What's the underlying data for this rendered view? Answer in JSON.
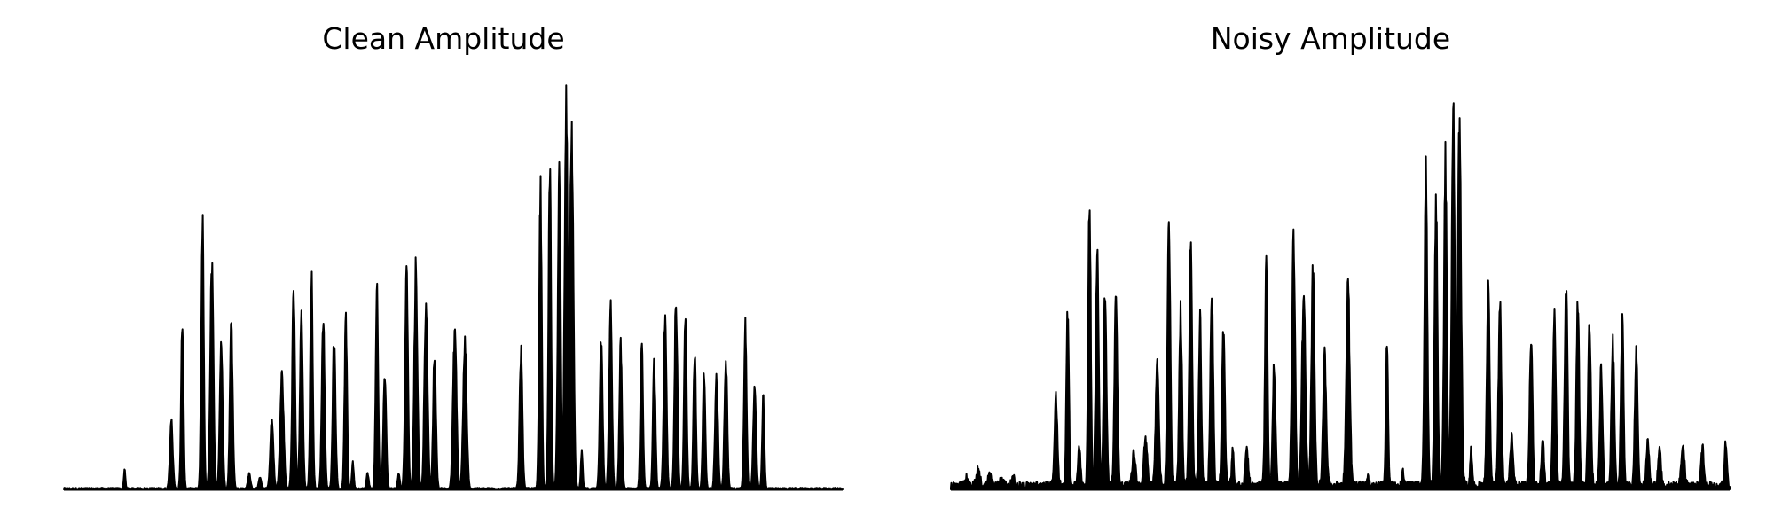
{
  "figure": {
    "background": "#ffffff",
    "line_color": "#000000"
  },
  "chart_data": [
    {
      "type": "area",
      "title": "Clean Amplitude",
      "axes_visible": false,
      "grid": false,
      "ylim": [
        0,
        1
      ],
      "xlim": [
        0,
        100
      ],
      "baseline": 0,
      "peaks": [
        [
          7.8,
          0.05,
          0.1
        ],
        [
          13.8,
          0.18,
          0.18
        ],
        [
          15.2,
          0.44,
          0.15
        ],
        [
          17.8,
          0.7,
          0.16
        ],
        [
          19.0,
          0.58,
          0.2
        ],
        [
          20.2,
          0.39,
          0.18
        ],
        [
          21.5,
          0.44,
          0.18
        ],
        [
          23.8,
          0.04,
          0.16
        ],
        [
          25.2,
          0.03,
          0.16
        ],
        [
          26.7,
          0.18,
          0.2
        ],
        [
          28.0,
          0.3,
          0.22
        ],
        [
          29.5,
          0.52,
          0.18
        ],
        [
          30.5,
          0.45,
          0.18
        ],
        [
          31.8,
          0.55,
          0.16
        ],
        [
          33.3,
          0.44,
          0.18
        ],
        [
          34.7,
          0.4,
          0.18
        ],
        [
          36.2,
          0.44,
          0.16
        ],
        [
          37.1,
          0.07,
          0.12
        ],
        [
          39.0,
          0.04,
          0.14
        ],
        [
          40.2,
          0.51,
          0.16
        ],
        [
          41.2,
          0.3,
          0.18
        ],
        [
          43.0,
          0.04,
          0.14
        ],
        [
          44.0,
          0.57,
          0.18
        ],
        [
          45.2,
          0.58,
          0.2
        ],
        [
          46.5,
          0.5,
          0.2
        ],
        [
          47.6,
          0.35,
          0.18
        ],
        [
          50.2,
          0.42,
          0.22
        ],
        [
          51.5,
          0.38,
          0.22
        ],
        [
          58.7,
          0.36,
          0.18
        ],
        [
          61.2,
          0.8,
          0.16
        ],
        [
          62.4,
          0.86,
          0.16
        ],
        [
          63.6,
          0.82,
          0.18
        ],
        [
          64.5,
          1.0,
          0.2
        ],
        [
          65.2,
          0.95,
          0.22
        ],
        [
          66.5,
          0.1,
          0.12
        ],
        [
          69.0,
          0.38,
          0.18
        ],
        [
          70.2,
          0.48,
          0.18
        ],
        [
          71.5,
          0.38,
          0.16
        ],
        [
          74.2,
          0.4,
          0.16
        ],
        [
          75.8,
          0.33,
          0.16
        ],
        [
          77.2,
          0.44,
          0.18
        ],
        [
          78.6,
          0.5,
          0.18
        ],
        [
          79.8,
          0.47,
          0.16
        ],
        [
          81.0,
          0.36,
          0.16
        ],
        [
          82.2,
          0.3,
          0.16
        ],
        [
          83.8,
          0.3,
          0.18
        ],
        [
          85.0,
          0.34,
          0.18
        ],
        [
          87.5,
          0.44,
          0.16
        ],
        [
          88.7,
          0.27,
          0.18
        ],
        [
          89.8,
          0.24,
          0.14
        ]
      ],
      "noise_floor": 0.004
    },
    {
      "type": "area",
      "title": "Noisy Amplitude",
      "axes_visible": false,
      "grid": false,
      "ylim": [
        0,
        1
      ],
      "xlim": [
        0,
        100
      ],
      "baseline": 0,
      "peaks": [
        [
          2.0,
          0.02,
          0.18
        ],
        [
          3.5,
          0.04,
          0.22
        ],
        [
          5.0,
          0.03,
          0.22
        ],
        [
          6.5,
          0.02,
          0.22
        ],
        [
          8.0,
          0.02,
          0.18
        ],
        [
          13.5,
          0.24,
          0.18
        ],
        [
          15.0,
          0.46,
          0.16
        ],
        [
          16.5,
          0.1,
          0.16
        ],
        [
          17.8,
          0.76,
          0.16
        ],
        [
          18.8,
          0.64,
          0.18
        ],
        [
          19.8,
          0.52,
          0.18
        ],
        [
          21.2,
          0.52,
          0.18
        ],
        [
          23.5,
          0.09,
          0.2
        ],
        [
          25.0,
          0.12,
          0.22
        ],
        [
          26.5,
          0.32,
          0.2
        ],
        [
          28.0,
          0.7,
          0.18
        ],
        [
          29.5,
          0.45,
          0.18
        ],
        [
          30.8,
          0.64,
          0.18
        ],
        [
          32.0,
          0.45,
          0.16
        ],
        [
          33.5,
          0.52,
          0.18
        ],
        [
          35.0,
          0.41,
          0.18
        ],
        [
          36.2,
          0.09,
          0.14
        ],
        [
          38.0,
          0.1,
          0.18
        ],
        [
          40.5,
          0.59,
          0.16
        ],
        [
          41.5,
          0.31,
          0.18
        ],
        [
          44.0,
          0.65,
          0.2
        ],
        [
          45.3,
          0.51,
          0.22
        ],
        [
          46.5,
          0.56,
          0.2
        ],
        [
          48.0,
          0.35,
          0.2
        ],
        [
          51.0,
          0.52,
          0.22
        ],
        [
          53.5,
          0.02,
          0.14
        ],
        [
          56.0,
          0.37,
          0.14
        ],
        [
          58.0,
          0.04,
          0.14
        ],
        [
          61.0,
          0.82,
          0.18
        ],
        [
          62.3,
          0.74,
          0.18
        ],
        [
          63.5,
          0.85,
          0.18
        ],
        [
          64.5,
          1.0,
          0.2
        ],
        [
          65.3,
          0.94,
          0.22
        ],
        [
          66.8,
          0.1,
          0.12
        ],
        [
          69.0,
          0.53,
          0.18
        ],
        [
          70.5,
          0.48,
          0.18
        ],
        [
          72.0,
          0.13,
          0.18
        ],
        [
          74.5,
          0.4,
          0.18
        ],
        [
          76.0,
          0.12,
          0.16
        ],
        [
          77.5,
          0.46,
          0.18
        ],
        [
          79.0,
          0.52,
          0.18
        ],
        [
          80.5,
          0.48,
          0.18
        ],
        [
          82.0,
          0.45,
          0.18
        ],
        [
          83.5,
          0.3,
          0.18
        ],
        [
          85.0,
          0.38,
          0.18
        ],
        [
          86.2,
          0.46,
          0.16
        ],
        [
          88.0,
          0.35,
          0.18
        ],
        [
          89.5,
          0.12,
          0.18
        ],
        [
          91.0,
          0.1,
          0.18
        ],
        [
          94.0,
          0.11,
          0.2
        ],
        [
          96.5,
          0.1,
          0.18
        ],
        [
          99.5,
          0.11,
          0.16
        ]
      ],
      "noise_floor": 0.02
    }
  ]
}
